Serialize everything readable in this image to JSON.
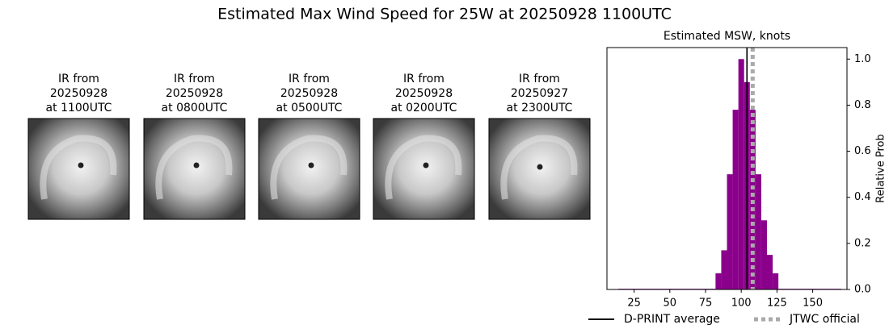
{
  "title": "Estimated Max Wind Speed for 25W at 20250928 1100UTC",
  "images": [
    {
      "title": [
        "IR from",
        "20250928",
        "at 1100UTC"
      ]
    },
    {
      "title": [
        "IR from",
        "20250928",
        "at 0800UTC"
      ]
    },
    {
      "title": [
        "IR from",
        "20250928",
        "at 0500UTC"
      ]
    },
    {
      "title": [
        "IR from",
        "20250928",
        "at 0200UTC"
      ]
    },
    {
      "title": [
        "IR from",
        "20250927",
        "at 2300UTC"
      ]
    }
  ],
  "chart_data": {
    "type": "histogram",
    "title": "Estimated MSW, knots",
    "y2_label": "Relative Prob",
    "bins": [
      14,
      18,
      22,
      26,
      30,
      34,
      38,
      42,
      46,
      50,
      54,
      58,
      62,
      66,
      70,
      74,
      78,
      82,
      86,
      90,
      94,
      98,
      102,
      106,
      110,
      114,
      118,
      122,
      126,
      130,
      134,
      138,
      142,
      146,
      150,
      154,
      158,
      162,
      166,
      170
    ],
    "values": [
      0.003,
      0.003,
      0.003,
      0.003,
      0.003,
      0.003,
      0.003,
      0.003,
      0.003,
      0.003,
      0.003,
      0.003,
      0.003,
      0.003,
      0.003,
      0.003,
      0.003,
      0.07,
      0.17,
      0.5,
      0.78,
      1.0,
      0.9,
      0.78,
      0.5,
      0.3,
      0.15,
      0.07,
      0.003,
      0.003,
      0.003,
      0.003,
      0.003,
      0.003,
      0.003,
      0.003,
      0.003,
      0.003,
      0.003
    ],
    "color": "#8b008b",
    "vlines": [
      {
        "name": "D-PRINT average",
        "x": 104,
        "color": "#000000",
        "style": "solid"
      },
      {
        "name": "JTWC official",
        "x": 108,
        "color": "#aaaaaa",
        "style": "dotted"
      }
    ],
    "xlim": [
      6,
      174
    ],
    "xticks": [
      25,
      50,
      75,
      100,
      125,
      150
    ],
    "ylim": [
      0,
      1.05
    ],
    "yticks": [
      {
        "value": 0,
        "label": "0.0"
      },
      0.2,
      0.4,
      0.6,
      0.8,
      {
        "value": 1,
        "label": "1.0"
      }
    ],
    "legend": "lower center"
  }
}
